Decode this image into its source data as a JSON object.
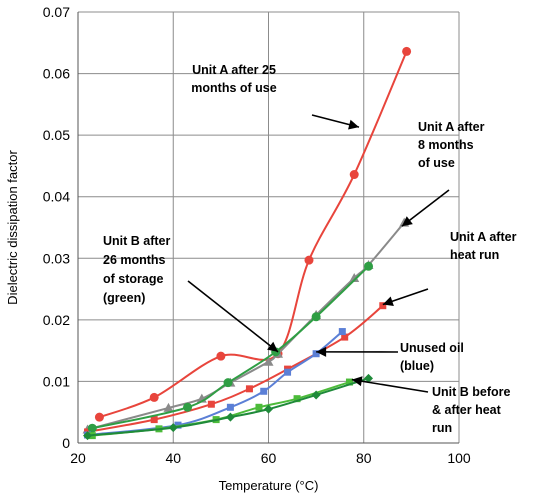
{
  "chart_data": {
    "type": "line",
    "xlabel": "Temperature (°C)",
    "ylabel": "Dielectric dissipation factor",
    "xlim": [
      20,
      100
    ],
    "ylim": [
      0,
      0.07
    ],
    "xticks": [
      "20",
      "40",
      "60",
      "80",
      "100"
    ],
    "yticks": [
      "0",
      "0.01",
      "0.02",
      "0.03",
      "0.04",
      "0.05",
      "0.06",
      "0.07"
    ],
    "grid": "horizontal and vertical at major ticks",
    "series": [
      {
        "color": "#e8453c",
        "marker": "circle",
        "x": [
          24.5,
          36,
          50,
          62,
          68.5,
          78,
          89
        ],
        "y": [
          0.0042,
          0.0074,
          0.0141,
          0.0145,
          0.0297,
          0.0436,
          0.0636
        ]
      },
      {
        "color": "#8a8a8a",
        "marker": "triangle",
        "x": [
          22,
          39,
          46,
          52,
          60,
          62,
          70,
          78,
          81,
          88.5
        ],
        "y": [
          0.0022,
          0.0057,
          0.0072,
          0.0098,
          0.0132,
          0.0145,
          0.0208,
          0.0268,
          0.0289,
          0.0358
        ]
      },
      {
        "color": "#e8453c",
        "marker": "square",
        "x": [
          22,
          36,
          48,
          56,
          64,
          76,
          84
        ],
        "y": [
          0.0018,
          0.0038,
          0.0063,
          0.0088,
          0.012,
          0.0172,
          0.0223
        ]
      },
      {
        "color": "#2f9e44",
        "marker": "circle",
        "x": [
          23,
          43,
          51.5,
          61.5,
          70,
          81
        ],
        "y": [
          0.0024,
          0.0058,
          0.0098,
          0.0148,
          0.0205,
          0.0287
        ]
      },
      {
        "color": "#5b7fd6",
        "marker": "square",
        "x": [
          22,
          41,
          52,
          59,
          64,
          70,
          75.5
        ],
        "y": [
          0.0013,
          0.0029,
          0.0058,
          0.0084,
          0.0115,
          0.0145,
          0.0181
        ]
      },
      {
        "color": "#4cbb3a",
        "marker": "square",
        "x": [
          23,
          37,
          49,
          58,
          66,
          77
        ],
        "y": [
          0.0012,
          0.0023,
          0.0038,
          0.0058,
          0.0072,
          0.0099
        ]
      },
      {
        "color": "#1f8a3a",
        "marker": "diamond",
        "x": [
          22,
          40,
          52,
          60,
          70,
          81
        ],
        "y": [
          0.0012,
          0.0025,
          0.0042,
          0.0055,
          0.0078,
          0.0105
        ]
      }
    ],
    "annotations": [
      {
        "lines": [
          "Unit A after 25",
          "months of use"
        ],
        "arrow_to": [
          79,
          0.0513
        ]
      },
      {
        "lines": [
          "Unit A after",
          "8 months",
          "of use"
        ],
        "arrow_to": [
          88,
          0.0352
        ]
      },
      {
        "lines": [
          "Unit A after",
          "heat run"
        ],
        "arrow_to": [
          84,
          0.0225
        ]
      },
      {
        "lines": [
          "Unit B after",
          "26 months",
          "of storage",
          "(green)"
        ],
        "arrow_to": [
          62,
          0.0148
        ]
      },
      {
        "lines": [
          "Unused oil",
          "(blue)"
        ],
        "arrow_to": [
          70,
          0.0148
        ]
      },
      {
        "lines": [
          "Unit B  before",
          "& after heat",
          "run"
        ],
        "arrow_to": [
          77.5,
          0.0103
        ]
      }
    ]
  }
}
